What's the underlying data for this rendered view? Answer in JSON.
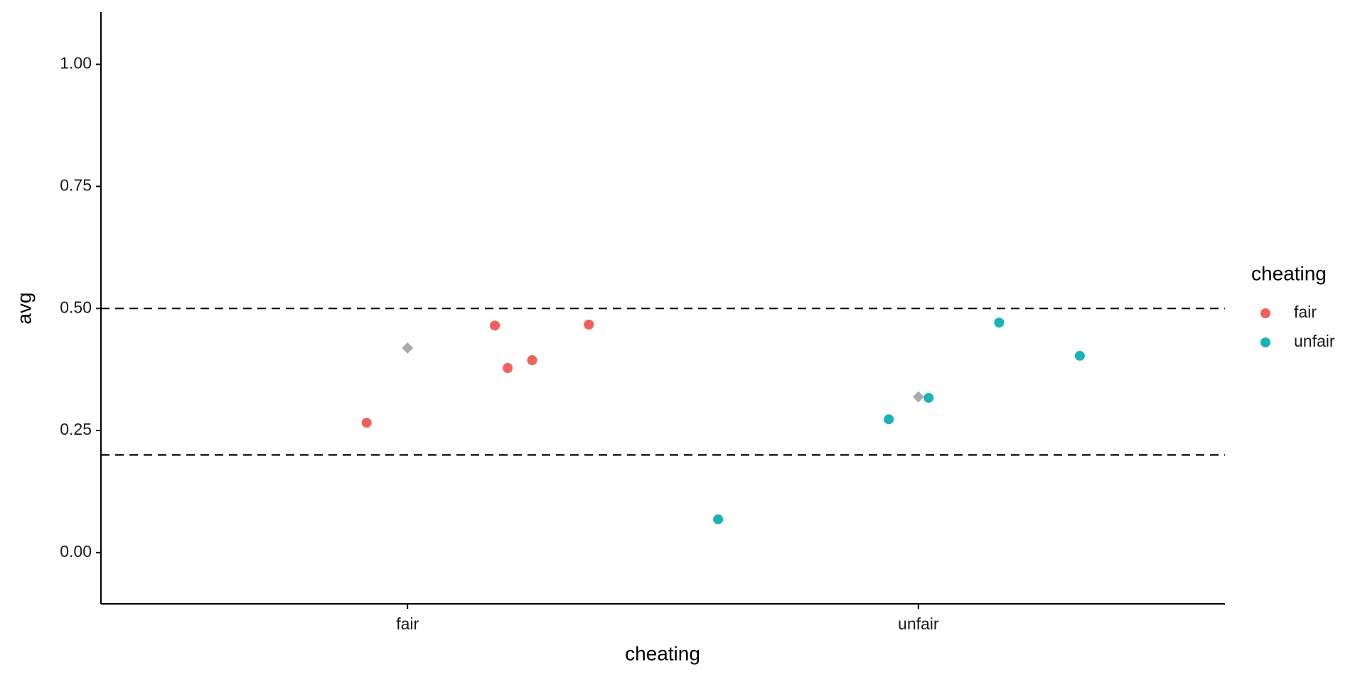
{
  "chart_data": {
    "type": "scatter",
    "x_label": "cheating",
    "y_label": "avg",
    "legend_title": "cheating",
    "xlim": [
      0.4,
      2.6
    ],
    "ylim": [
      -0.105,
      1.107
    ],
    "xticks": [
      {
        "value": 1,
        "label": "fair"
      },
      {
        "value": 2,
        "label": "unfair"
      }
    ],
    "yticks": [
      {
        "value": 0,
        "label": "0.00"
      },
      {
        "value": 0.25,
        "label": "0.25"
      },
      {
        "value": 0.5,
        "label": "0.50"
      },
      {
        "value": 0.75,
        "label": "0.75"
      },
      {
        "value": 1,
        "label": "1.00"
      }
    ],
    "hlines": [
      0.5,
      0.2
    ],
    "legend_position": "right",
    "series": [
      {
        "name": "fair",
        "color": "#f0605c",
        "marker": "circle",
        "x": [
          0.92,
          1.171,
          1.196,
          1.244,
          1.355
        ],
        "values": [
          0.266,
          0.465,
          0.378,
          0.394,
          0.467
        ]
      },
      {
        "name": "unfair",
        "color": "#1ab3b9",
        "marker": "circle",
        "x": [
          1.608,
          1.942,
          2.02,
          2.158,
          2.316
        ],
        "values": [
          0.068,
          0.273,
          0.317,
          0.471,
          0.403
        ]
      },
      {
        "color": "#aaaaaa",
        "marker": "diamond",
        "x": [
          1,
          2
        ],
        "values": [
          0.419,
          0.319
        ]
      }
    ]
  }
}
